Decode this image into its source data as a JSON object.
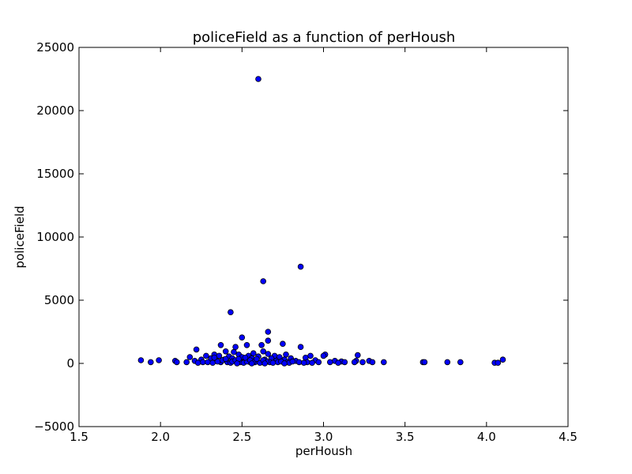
{
  "chart_data": {
    "type": "scatter",
    "title": "policeField as a function of perHoush",
    "xlabel": "perHoush",
    "ylabel": "policeField",
    "xlim": [
      1.5,
      4.5
    ],
    "ylim": [
      -5000,
      25000
    ],
    "x_ticks": [
      "1.5",
      "2.0",
      "2.5",
      "3.0",
      "3.5",
      "4.0",
      "4.5"
    ],
    "y_ticks": [
      "−5000",
      "0",
      "5000",
      "10000",
      "15000",
      "20000",
      "25000"
    ],
    "grid": false,
    "marker_color": "#0000ff",
    "marker_edge": "#000000",
    "points": [
      {
        "x": 2.6,
        "y": 22500
      },
      {
        "x": 2.86,
        "y": 7650
      },
      {
        "x": 2.63,
        "y": 6500
      },
      {
        "x": 2.43,
        "y": 4050
      },
      {
        "x": 2.66,
        "y": 2500
      },
      {
        "x": 2.5,
        "y": 2050
      },
      {
        "x": 2.66,
        "y": 1800
      },
      {
        "x": 2.75,
        "y": 1550
      },
      {
        "x": 2.37,
        "y": 1450
      },
      {
        "x": 2.53,
        "y": 1450
      },
      {
        "x": 2.62,
        "y": 1450
      },
      {
        "x": 2.46,
        "y": 1300
      },
      {
        "x": 2.86,
        "y": 1300
      },
      {
        "x": 2.22,
        "y": 1100
      },
      {
        "x": 2.4,
        "y": 950
      },
      {
        "x": 2.63,
        "y": 950
      },
      {
        "x": 2.45,
        "y": 900
      },
      {
        "x": 2.57,
        "y": 800
      },
      {
        "x": 2.66,
        "y": 750
      },
      {
        "x": 2.33,
        "y": 700
      },
      {
        "x": 2.48,
        "y": 700
      },
      {
        "x": 2.77,
        "y": 700
      },
      {
        "x": 3.01,
        "y": 700
      },
      {
        "x": 3.21,
        "y": 650
      },
      {
        "x": 2.28,
        "y": 600
      },
      {
        "x": 2.36,
        "y": 600
      },
      {
        "x": 2.54,
        "y": 600
      },
      {
        "x": 2.7,
        "y": 600
      },
      {
        "x": 2.92,
        "y": 600
      },
      {
        "x": 3.0,
        "y": 600
      },
      {
        "x": 2.42,
        "y": 550
      },
      {
        "x": 2.6,
        "y": 550
      },
      {
        "x": 2.18,
        "y": 500
      },
      {
        "x": 2.5,
        "y": 500
      },
      {
        "x": 2.73,
        "y": 500
      },
      {
        "x": 2.89,
        "y": 450
      },
      {
        "x": 2.31,
        "y": 400
      },
      {
        "x": 2.44,
        "y": 400
      },
      {
        "x": 2.56,
        "y": 400
      },
      {
        "x": 2.68,
        "y": 400
      },
      {
        "x": 2.8,
        "y": 400
      },
      {
        "x": 4.1,
        "y": 300
      },
      {
        "x": 1.88,
        "y": 250
      },
      {
        "x": 1.99,
        "y": 250
      },
      {
        "x": 2.25,
        "y": 300
      },
      {
        "x": 2.39,
        "y": 300
      },
      {
        "x": 2.52,
        "y": 300
      },
      {
        "x": 2.64,
        "y": 300
      },
      {
        "x": 2.76,
        "y": 300
      },
      {
        "x": 2.95,
        "y": 250
      },
      {
        "x": 3.07,
        "y": 200
      },
      {
        "x": 3.2,
        "y": 200
      },
      {
        "x": 3.28,
        "y": 200
      },
      {
        "x": 2.09,
        "y": 200
      },
      {
        "x": 2.21,
        "y": 200
      },
      {
        "x": 2.34,
        "y": 200
      },
      {
        "x": 2.47,
        "y": 200
      },
      {
        "x": 2.59,
        "y": 200
      },
      {
        "x": 2.71,
        "y": 200
      },
      {
        "x": 2.83,
        "y": 200
      },
      {
        "x": 3.11,
        "y": 150
      },
      {
        "x": 1.94,
        "y": 100
      },
      {
        "x": 2.1,
        "y": 100
      },
      {
        "x": 2.16,
        "y": 100
      },
      {
        "x": 2.26,
        "y": 100
      },
      {
        "x": 2.29,
        "y": 100
      },
      {
        "x": 2.37,
        "y": 100
      },
      {
        "x": 2.41,
        "y": 100
      },
      {
        "x": 2.49,
        "y": 100
      },
      {
        "x": 2.55,
        "y": 100
      },
      {
        "x": 2.58,
        "y": 100
      },
      {
        "x": 2.62,
        "y": 100
      },
      {
        "x": 2.67,
        "y": 100
      },
      {
        "x": 2.72,
        "y": 100
      },
      {
        "x": 2.78,
        "y": 100
      },
      {
        "x": 2.85,
        "y": 100
      },
      {
        "x": 2.9,
        "y": 100
      },
      {
        "x": 2.97,
        "y": 100
      },
      {
        "x": 3.04,
        "y": 100
      },
      {
        "x": 3.13,
        "y": 100
      },
      {
        "x": 3.19,
        "y": 100
      },
      {
        "x": 3.24,
        "y": 100
      },
      {
        "x": 3.3,
        "y": 100
      },
      {
        "x": 3.37,
        "y": 100
      },
      {
        "x": 3.61,
        "y": 100
      },
      {
        "x": 3.62,
        "y": 100
      },
      {
        "x": 3.76,
        "y": 100
      },
      {
        "x": 3.84,
        "y": 100
      },
      {
        "x": 4.05,
        "y": 50
      },
      {
        "x": 4.07,
        "y": 50
      },
      {
        "x": 2.23,
        "y": 50
      },
      {
        "x": 2.32,
        "y": 50
      },
      {
        "x": 2.43,
        "y": 50
      },
      {
        "x": 2.51,
        "y": 50
      },
      {
        "x": 2.61,
        "y": 50
      },
      {
        "x": 2.69,
        "y": 50
      },
      {
        "x": 2.79,
        "y": 50
      },
      {
        "x": 2.88,
        "y": 50
      },
      {
        "x": 2.93,
        "y": 50
      },
      {
        "x": 3.09,
        "y": 50
      },
      {
        "x": 2.35,
        "y": 150
      },
      {
        "x": 2.44,
        "y": 150
      },
      {
        "x": 2.53,
        "y": 150
      },
      {
        "x": 2.57,
        "y": 150
      },
      {
        "x": 2.65,
        "y": 150
      },
      {
        "x": 2.74,
        "y": 150
      },
      {
        "x": 2.81,
        "y": 150
      },
      {
        "x": 2.38,
        "y": 250
      },
      {
        "x": 2.46,
        "y": 250
      },
      {
        "x": 2.55,
        "y": 250
      },
      {
        "x": 2.63,
        "y": 250
      },
      {
        "x": 2.4,
        "y": 350
      },
      {
        "x": 2.48,
        "y": 350
      },
      {
        "x": 2.59,
        "y": 350
      },
      {
        "x": 2.33,
        "y": 450
      },
      {
        "x": 2.52,
        "y": 450
      },
      {
        "x": 2.64,
        "y": 0
      },
      {
        "x": 2.56,
        "y": 0
      },
      {
        "x": 2.47,
        "y": 0
      },
      {
        "x": 2.76,
        "y": 0
      }
    ]
  }
}
